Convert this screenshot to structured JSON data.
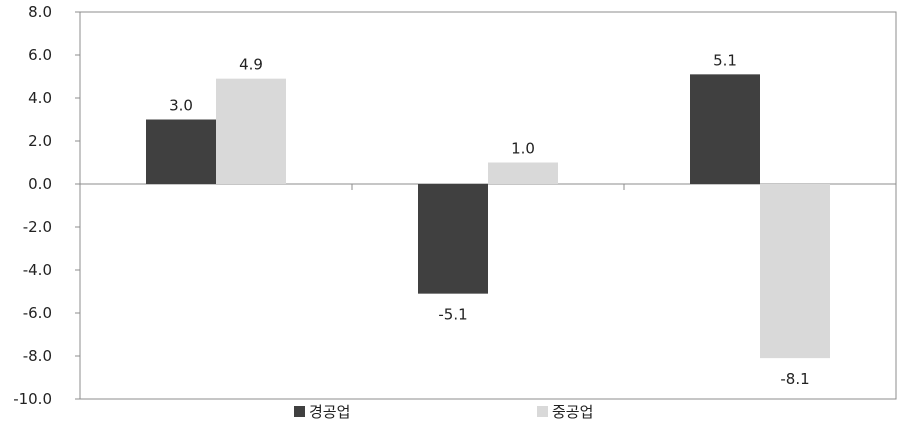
{
  "chart_data": {
    "type": "bar",
    "categories": [
      "",
      "",
      ""
    ],
    "series": [
      {
        "name": "경공업",
        "values": [
          3.0,
          -5.1,
          5.1
        ],
        "labels": [
          "3.0",
          "-5.1",
          "5.1"
        ],
        "color": "#404040"
      },
      {
        "name": "중공업",
        "values": [
          4.9,
          1.0,
          -8.1
        ],
        "labels": [
          "4.9",
          "1.0",
          "-8.1"
        ],
        "color": "#d9d9d9"
      }
    ],
    "ylim": [
      -10,
      8
    ],
    "yticks": [
      8.0,
      6.0,
      4.0,
      2.0,
      0.0,
      -2.0,
      -4.0,
      -6.0,
      -8.0,
      -10.0
    ],
    "ytick_labels": [
      "8.0",
      "6.0",
      "4.0",
      "2.0",
      "0.0",
      "-2.0",
      "-4.0",
      "-6.0",
      "-8.0",
      "-10.0"
    ],
    "grid": false,
    "legend_position": "bottom"
  }
}
